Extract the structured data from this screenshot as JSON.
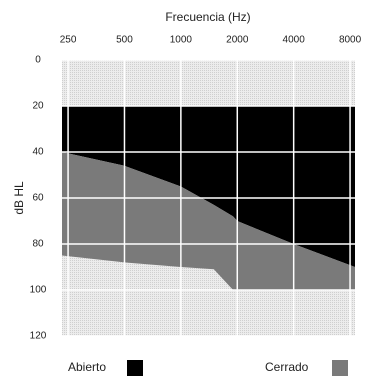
{
  "chart_data": {
    "type": "area",
    "title": "Frecuencia (Hz)",
    "y_label": "dB HL",
    "x_scale": "log",
    "x": [
      232,
      500,
      1000,
      1500,
      1900,
      2000,
      4000,
      8500
    ],
    "xlim": [
      232,
      8500
    ],
    "xticks": [
      250,
      500,
      1000,
      2000,
      4000,
      8000
    ],
    "ylim": [
      0,
      120
    ],
    "yticks": [
      0,
      20,
      40,
      60,
      80,
      100,
      120
    ],
    "y_inverted": true,
    "grid": true,
    "series": [
      {
        "name": "Abierto",
        "color": "#000000",
        "top": [
          20,
          20,
          20,
          20,
          20,
          20,
          20,
          20
        ],
        "values": [
          40,
          46,
          55,
          63,
          68,
          70,
          80,
          90
        ]
      },
      {
        "name": "Cerrado",
        "color": "#7a7a7a",
        "values": [
          85,
          88,
          90,
          91,
          100,
          100,
          100,
          100
        ]
      }
    ]
  }
}
